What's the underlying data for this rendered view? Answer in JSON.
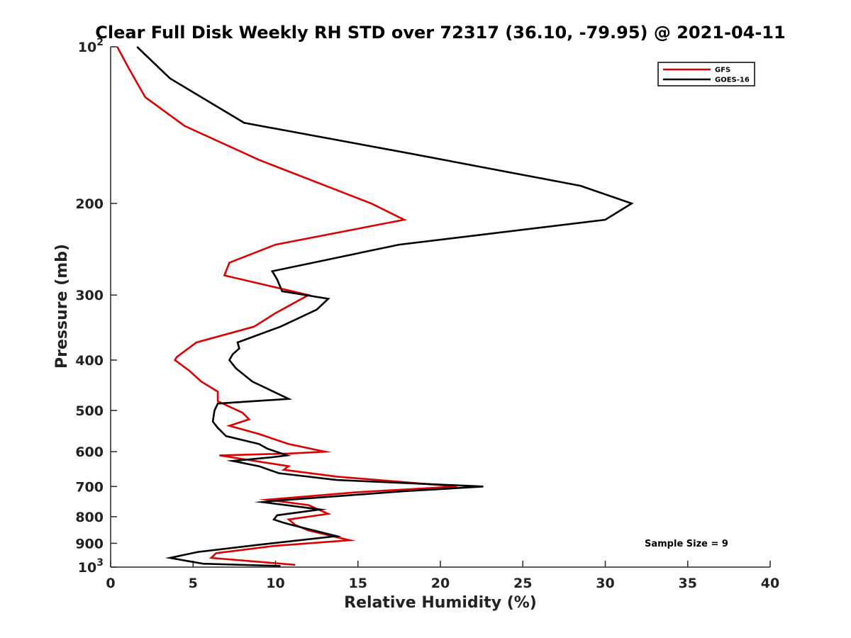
{
  "chart_data": {
    "type": "line",
    "title": "Clear Full Disk Weekly RH STD over 72317 (36.10, -79.95) @ 2021-04-11",
    "xlabel": "Relative Humidity (%)",
    "ylabel": "Pressure (mb)",
    "xlim": [
      0,
      40
    ],
    "ylim": [
      100,
      1000
    ],
    "y_scale": "log",
    "y_reversed": true,
    "x_ticks": [
      "0",
      "5",
      "10",
      "15",
      "20",
      "25",
      "30",
      "35",
      "40"
    ],
    "y_ticks": [
      {
        "value": 100,
        "base": "10",
        "exp": "2"
      },
      {
        "value": 200,
        "label": "200"
      },
      {
        "value": 300,
        "label": "300"
      },
      {
        "value": 400,
        "label": "400"
      },
      {
        "value": 500,
        "label": "500"
      },
      {
        "value": 600,
        "label": "600"
      },
      {
        "value": 700,
        "label": "700"
      },
      {
        "value": 800,
        "label": "800"
      },
      {
        "value": 900,
        "label": "900"
      },
      {
        "value": 1000,
        "base": "10",
        "exp": "3"
      }
    ],
    "legend_position": "top-right",
    "annotation": "Sample Size = 9",
    "series": [
      {
        "name": "GFS",
        "color": "#dd0000",
        "x": [
          0.4,
          1.1,
          2.1,
          4.5,
          9.0,
          15.8,
          17.8,
          10.0,
          7.2,
          6.9,
          12.0,
          10.0,
          8.7,
          5.2,
          4.0,
          3.9,
          4.8,
          5.5,
          6.5,
          6.5,
          8.0,
          8.4,
          7.2,
          9.0,
          10.8,
          13.0,
          10.8,
          6.6,
          10.8,
          10.5,
          13.7,
          21.0,
          14.9,
          9.5,
          12.0,
          13.2,
          10.8,
          11.2,
          12.0,
          14.5,
          10.0,
          6.4,
          6.1,
          11.2
        ],
        "y": [
          100,
          110,
          125,
          142,
          165,
          200,
          215,
          240,
          260,
          275,
          300,
          325,
          345,
          370,
          395,
          400,
          420,
          440,
          460,
          480,
          505,
          520,
          535,
          555,
          580,
          600,
          605,
          610,
          640,
          650,
          670,
          700,
          718,
          742,
          760,
          790,
          810,
          830,
          850,
          888,
          910,
          940,
          960,
          990
        ]
      },
      {
        "name": "GOES-16",
        "color": "#000000",
        "x": [
          1.6,
          3.6,
          8.1,
          18.0,
          28.5,
          31.6,
          30.0,
          17.5,
          9.8,
          10.1,
          10.4,
          13.2,
          12.5,
          10.3,
          7.7,
          7.8,
          7.4,
          7.2,
          7.6,
          8.6,
          10.8,
          6.5,
          6.3,
          6.2,
          6.5,
          7.0,
          9.0,
          9.5,
          10.7,
          9.8,
          7.4,
          9.0,
          10.2,
          13.7,
          22.6,
          17.7,
          10.1,
          9.2,
          12.7,
          10.1,
          9.9,
          10.4,
          11.0,
          13.7,
          9.1,
          5.3,
          3.6,
          5.6,
          10.3
        ],
        "y": [
          100,
          115,
          140,
          160,
          185,
          200,
          215,
          240,
          270,
          280,
          295,
          305,
          320,
          345,
          370,
          380,
          390,
          400,
          415,
          440,
          475,
          485,
          500,
          525,
          540,
          560,
          580,
          592,
          610,
          615,
          625,
          640,
          660,
          680,
          700,
          715,
          745,
          750,
          775,
          795,
          810,
          820,
          830,
          872,
          905,
          935,
          960,
          985,
          995
        ]
      }
    ]
  }
}
